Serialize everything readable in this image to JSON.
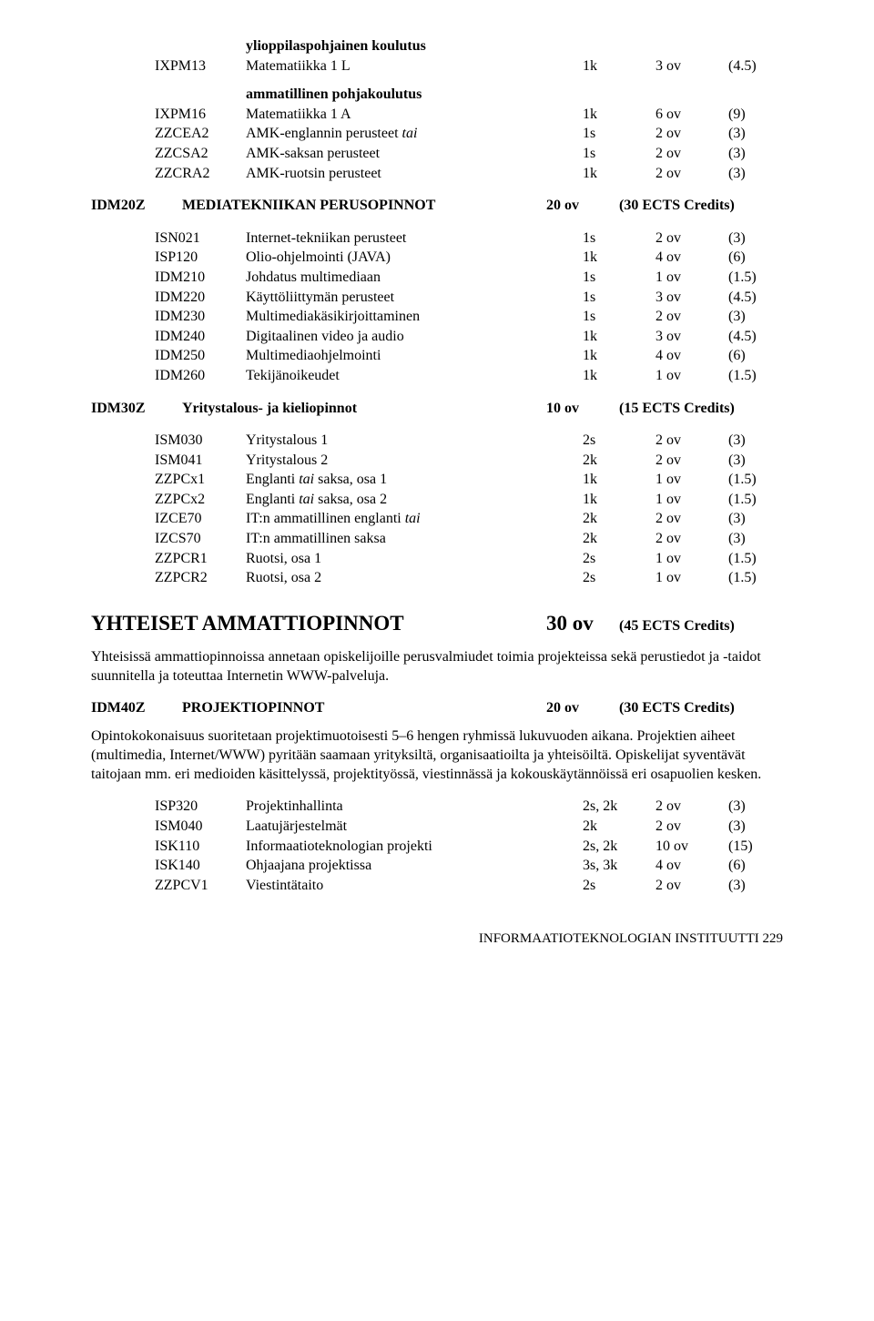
{
  "pre": {
    "sub1_title": "ylioppilaspohjainen koulutus",
    "row1": {
      "code": "IXPM13",
      "name": "Matematiikka 1 L",
      "term": "1k",
      "ov": "3 ov",
      "cr": "(4.5)"
    },
    "sub2_title": "ammatillinen pohjakoulutus",
    "rows2": [
      {
        "code": "IXPM16",
        "name": "Matematiikka 1 A",
        "term": "1k",
        "ov": "6 ov",
        "cr": "(9)"
      },
      {
        "code": "ZZCEA2",
        "name_pre": "AMK-englannin perusteet ",
        "name_it": "tai",
        "term": "1s",
        "ov": "2 ov",
        "cr": "(3)"
      },
      {
        "code": "ZZCSA2",
        "name": "AMK-saksan perusteet",
        "term": "1s",
        "ov": "2 ov",
        "cr": "(3)"
      },
      {
        "code": "ZZCRA2",
        "name": "AMK-ruotsin perusteet",
        "term": "1k",
        "ov": "2 ov",
        "cr": "(3)"
      }
    ]
  },
  "sec20": {
    "code": "IDM20Z",
    "name": "MEDIATEKNIIKAN PERUSOPINNOT",
    "ov": "20 ov",
    "cr": "(30 ECTS Credits)",
    "rows": [
      {
        "code": "ISN021",
        "name": "Internet-tekniikan perusteet",
        "term": "1s",
        "ov": "2 ov",
        "cr": "(3)"
      },
      {
        "code": "ISP120",
        "name": "Olio-ohjelmointi (JAVA)",
        "term": "1k",
        "ov": "4 ov",
        "cr": "(6)"
      },
      {
        "code": "IDM210",
        "name": "Johdatus multimediaan",
        "term": "1s",
        "ov": "1 ov",
        "cr": "(1.5)"
      },
      {
        "code": "IDM220",
        "name": "Käyttöliittymän perusteet",
        "term": "1s",
        "ov": "3 ov",
        "cr": "(4.5)"
      },
      {
        "code": "IDM230",
        "name": "Multimediakäsikirjoittaminen",
        "term": "1s",
        "ov": "2 ov",
        "cr": "(3)"
      },
      {
        "code": "IDM240",
        "name": "Digitaalinen video ja audio",
        "term": "1k",
        "ov": "3 ov",
        "cr": "(4.5)"
      },
      {
        "code": "IDM250",
        "name": "Multimediaohjelmointi",
        "term": "1k",
        "ov": "4 ov",
        "cr": "(6)"
      },
      {
        "code": "IDM260",
        "name": "Tekijänoikeudet",
        "term": "1k",
        "ov": "1 ov",
        "cr": "(1.5)"
      }
    ]
  },
  "sec30": {
    "code": "IDM30Z",
    "name": "Yritystalous- ja kieliopinnot",
    "ov": "10 ov",
    "cr": "(15 ECTS Credits)",
    "rows": [
      {
        "code": "ISM030",
        "name": "Yritystalous 1",
        "term": "2s",
        "ov": "2 ov",
        "cr": "(3)"
      },
      {
        "code": "ISM041",
        "name": "Yritystalous 2",
        "term": "2k",
        "ov": "2 ov",
        "cr": "(3)"
      },
      {
        "code": "ZZPCx1",
        "name_pre": "Englanti ",
        "name_it": "tai",
        "name_post": " saksa, osa 1",
        "term": "1k",
        "ov": "1 ov",
        "cr": "(1.5)"
      },
      {
        "code": "ZZPCx2",
        "name_pre": "Englanti ",
        "name_it": "tai",
        "name_post": " saksa, osa 2",
        "term": "1k",
        "ov": "1 ov",
        "cr": "(1.5)"
      },
      {
        "code": "IZCE70",
        "name_pre": "IT:n ammatillinen englanti ",
        "name_it": "tai",
        "term": "2k",
        "ov": "2 ov",
        "cr": "(3)"
      },
      {
        "code": "IZCS70",
        "name": "IT:n ammatillinen saksa",
        "term": "2k",
        "ov": "2 ov",
        "cr": "(3)"
      },
      {
        "code": "ZZPCR1",
        "name": "Ruotsi, osa 1",
        "term": "2s",
        "ov": "1 ov",
        "cr": "(1.5)"
      },
      {
        "code": "ZZPCR2",
        "name": "Ruotsi, osa 2",
        "term": "2s",
        "ov": "1 ov",
        "cr": "(1.5)"
      }
    ]
  },
  "bigheading": {
    "title": "YHTEISET AMMATTIOPINNOT",
    "ov": "30 ov",
    "cr": "(45 ECTS Credits)"
  },
  "para1": "Yhteisissä ammattiopinnoissa annetaan opiskelijoille perusvalmiudet toimia projekteissa sekä perustiedot ja -taidot suunnitella ja toteuttaa Internetin WWW-palveluja.",
  "sec40": {
    "code": "IDM40Z",
    "name": "PROJEKTIOPINNOT",
    "ov": "20 ov",
    "cr": "(30 ECTS Credits)"
  },
  "para2": "Opintokokonaisuus suoritetaan projektimuotoisesti 5–6 hengen ryhmissä lukuvuoden aikana. Projektien aiheet (multimedia, Internet/WWW) pyritään saamaan yrityksiltä, organisaatioilta ja yhteisöiltä. Opiskelijat syventävät taitojaan mm. eri medioiden käsittelyssä, projektityössä, viestinnässä ja kokouskäytännöissä eri osapuolien kesken.",
  "rows40": [
    {
      "code": "ISP320",
      "name": "Projektinhallinta",
      "term": "2s, 2k",
      "ov": "2 ov",
      "cr": "(3)"
    },
    {
      "code": "ISM040",
      "name": "Laatujärjestelmät",
      "term": "2k",
      "ov": "2 ov",
      "cr": "(3)"
    },
    {
      "code": "ISK110",
      "name": "Informaatioteknologian projekti",
      "term": "2s, 2k",
      "ov": "10 ov",
      "cr": "(15)"
    },
    {
      "code": "ISK140",
      "name": "Ohjaajana projektissa",
      "term": "3s, 3k",
      "ov": "4 ov",
      "cr": "(6)"
    },
    {
      "code": "ZZPCV1",
      "name": "Viestintätaito",
      "term": "2s",
      "ov": "2 ov",
      "cr": "(3)"
    }
  ],
  "footer": "INFORMAATIOTEKNOLOGIAN INSTITUUTTI    229"
}
